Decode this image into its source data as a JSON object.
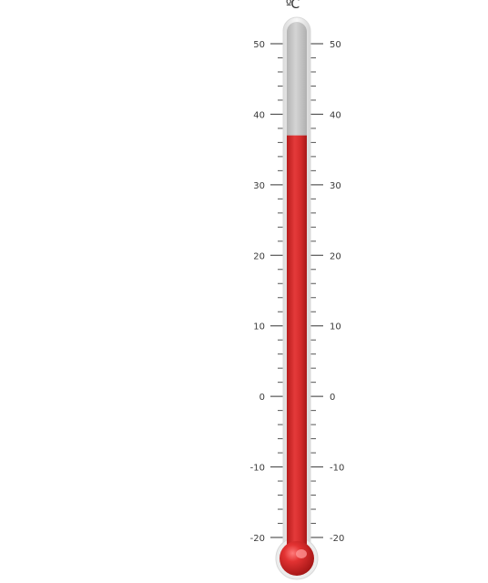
{
  "thermometer": {
    "unit": "ºC",
    "scale_min": -20,
    "scale_max": 50,
    "major_step": 10,
    "minor_step": 2,
    "reading": 37,
    "tick_labels": [
      "50",
      "40",
      "30",
      "20",
      "10",
      "0",
      "-10",
      "-20"
    ],
    "colors": {
      "mercury": "#d42b2b",
      "mercury_highlight": "#ee5a5a",
      "mercury_shadow": "#a81818",
      "empty_tube": "#c8c8c8",
      "glass": "#eeeeee",
      "tick": "#555555"
    }
  }
}
